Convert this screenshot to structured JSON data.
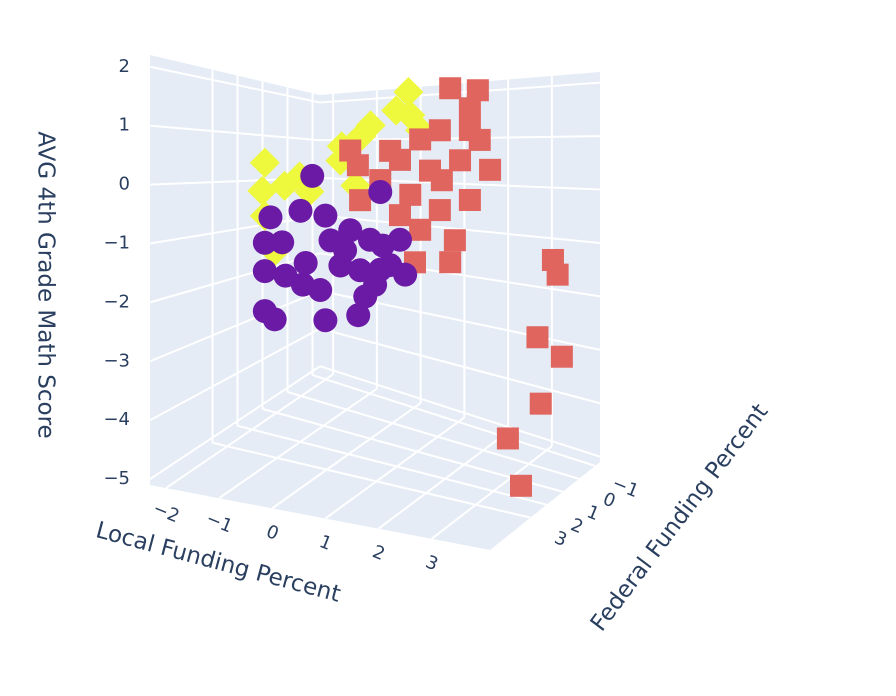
{
  "chart_data": {
    "type": "scatter3d",
    "x_title": "Local Funding Percent",
    "y_title": "Federal Funding Percent",
    "z_title": "AVG 4th Grade Math Score",
    "xlim": [
      -2.3,
      4.1
    ],
    "ylim": [
      -1.3,
      5.5
    ],
    "zlim": [
      -5.1,
      2.2
    ],
    "xticks": [
      {
        "value": -2,
        "label": "−2"
      },
      {
        "value": -1,
        "label": "−1"
      },
      0,
      1,
      2,
      3
    ],
    "yticks": [
      {
        "value": -1,
        "label": "−1"
      },
      0,
      1,
      2,
      3
    ],
    "zticks": [
      {
        "value": -5,
        "label": "−5"
      },
      {
        "value": -4,
        "label": "−4"
      },
      {
        "value": -3,
        "label": "−3"
      },
      {
        "value": -2,
        "label": "−2"
      },
      {
        "value": -1,
        "label": "−1"
      },
      0,
      1,
      2
    ],
    "grid": true,
    "series": [
      {
        "color": "#eef83c",
        "symbol": "diamond",
        "x": [
          0.81,
          0.55,
          -0.19,
          -0.61,
          -2.25,
          -1.83,
          -2.25,
          -2.25,
          -1.51,
          -1.3,
          -0.04,
          0.85,
          1.06,
          -0.64,
          -0.32,
          -2.04
        ],
        "y": [
          1,
          1,
          1,
          1,
          1,
          1,
          1.1,
          1,
          1,
          1,
          0.9,
          1,
          1,
          1,
          1,
          1
        ],
        "z": [
          1.96,
          1.59,
          1.06,
          0.83,
          0.39,
          -0.09,
          -0.23,
          -0.79,
          0.14,
          -0.17,
          1.28,
          1.5,
          1.21,
          0.53,
          0.03,
          -1.55
        ]
      },
      {
        "color": "#e0655f",
        "symbol": "square",
        "x": [
          1.7,
          2.29,
          2.12,
          1.48,
          1.06,
          2.33,
          -0.43,
          -0.22,
          0.63,
          1.91,
          2.55,
          1.48,
          0.21,
          0.85,
          2.12,
          -0.22,
          1.48,
          1.06,
          1.8,
          0.95,
          1.7,
          0.63,
          1.27,
          2.12,
          0.42,
          3.89,
          3.99,
          3.56,
          4.08,
          3.63,
          2.93,
          3.91
        ],
        "y": [
          1,
          1,
          1,
          1,
          1,
          1,
          1,
          1.1,
          1,
          1,
          1,
          0.9,
          1,
          1,
          1,
          1,
          1,
          1,
          1,
          1,
          1,
          1,
          1,
          1,
          1,
          1,
          1,
          1,
          1,
          1,
          1,
          3
        ],
        "z": [
          2.03,
          1.99,
          1.65,
          1.22,
          1.03,
          1.06,
          0.75,
          0.46,
          0.61,
          0.66,
          0.51,
          0.25,
          0.18,
          -0.07,
          -0.08,
          -0.26,
          -0.32,
          -0.74,
          -0.87,
          -1.39,
          -1.3,
          -0.49,
          0.43,
          1.24,
          0.78,
          -1.03,
          -1.28,
          -2.45,
          -2.72,
          -3.63,
          -4.4,
          -4.6
        ]
      },
      {
        "color": "#6a1aa5",
        "symbol": "circle",
        "x": [
          -1.24,
          -2.13,
          -1.49,
          -0.96,
          -2.25,
          -1.88,
          -2.25,
          -1.81,
          -1.38,
          -1.49,
          -1.07,
          -2.25,
          -2.04,
          -0.96,
          -0.26,
          -0.54,
          -0.01,
          0.31,
          0.63,
          0.74,
          0.21,
          -0.22,
          -0.64,
          -0.11,
          -0.43,
          -0.85,
          0.1,
          0.42,
          0.21
        ],
        "y": [
          1,
          1,
          1,
          1,
          1,
          1,
          1,
          1,
          1,
          0.9,
          1,
          1,
          1,
          1,
          1,
          1,
          1,
          1.1,
          1,
          1,
          1,
          1,
          1,
          1,
          1,
          1,
          1,
          1,
          1
        ],
        "z": [
          0.17,
          -0.81,
          -0.6,
          -0.65,
          -1.39,
          -1.33,
          -2.02,
          -2.05,
          -1.71,
          -2.21,
          -2.24,
          -2.91,
          -3.05,
          -2.86,
          -2.63,
          -1.33,
          -1.05,
          -1.12,
          -0.98,
          -1.66,
          -1.63,
          -1.7,
          -1.66,
          -2.22,
          -0.9,
          -1.16,
          -1.95,
          -1.51,
          -0.06
        ]
      }
    ]
  }
}
